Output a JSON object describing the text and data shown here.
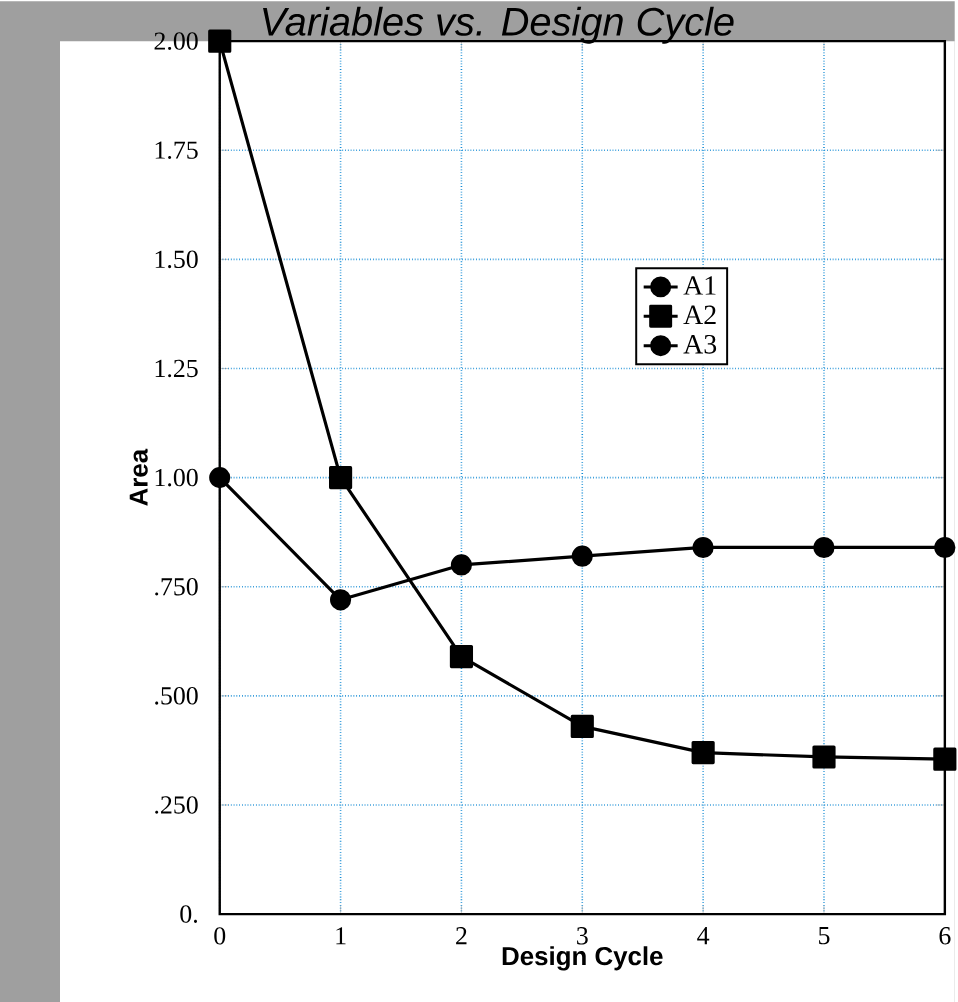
{
  "chart_data": {
    "type": "line",
    "title": "Variables vs. Design Cycle",
    "xlabel": "Design Cycle",
    "ylabel": "Area",
    "x": [
      0,
      1,
      2,
      3,
      4,
      5,
      6
    ],
    "series": [
      {
        "name": "A1",
        "color": "#000000",
        "marker": "circle",
        "values": [
          null,
          null,
          null,
          null,
          null,
          null,
          null
        ]
      },
      {
        "name": "A2",
        "color": "#000000",
        "marker": "square",
        "values": [
          2.0,
          1.0,
          0.59,
          0.43,
          0.37,
          0.36,
          0.355
        ]
      },
      {
        "name": "A3",
        "color": "#000000",
        "marker": "circle",
        "values": [
          1.0,
          0.72,
          0.8,
          0.82,
          0.84,
          0.84,
          0.84
        ]
      }
    ],
    "xlim": [
      0,
      6
    ],
    "ylim": [
      0,
      2
    ],
    "xticks": [
      0,
      1,
      2,
      3,
      4,
      5,
      6
    ],
    "yticks": [
      {
        "value": 0,
        "label": "0."
      },
      {
        "value": 0.25,
        "label": ".250"
      },
      {
        "value": 0.5,
        "label": ".500"
      },
      {
        "value": 0.75,
        "label": ".750"
      },
      {
        "value": 1,
        "label": "1.00"
      },
      {
        "value": 1.25,
        "label": "1.25"
      },
      {
        "value": 1.5,
        "label": "1.50"
      },
      {
        "value": 1.75,
        "label": "1.75"
      },
      {
        "value": 2,
        "label": "2.00"
      }
    ],
    "grid": true,
    "legend": "top right",
    "line_style": "solid"
  }
}
